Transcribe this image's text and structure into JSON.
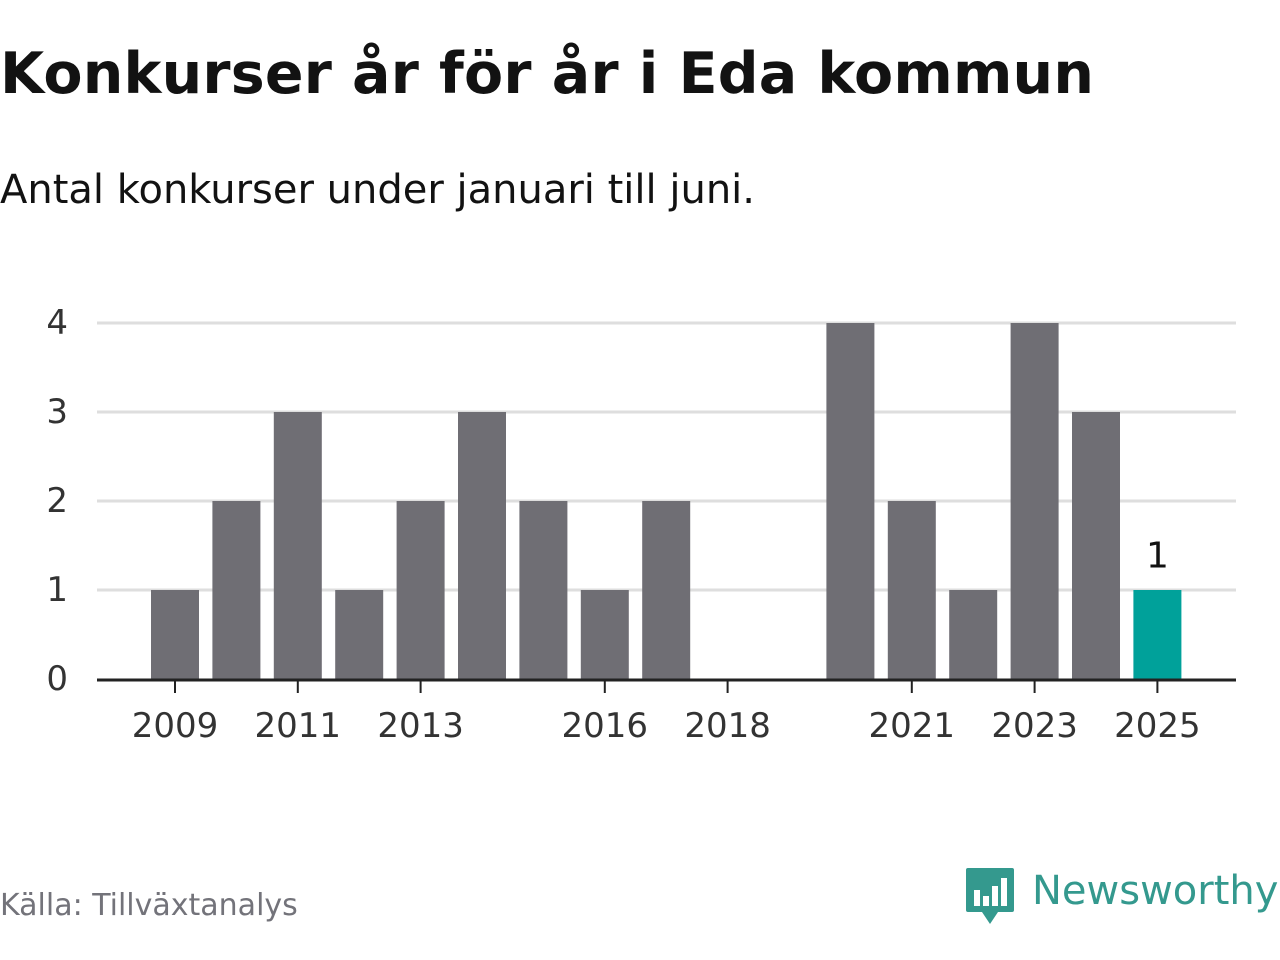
{
  "title": "Konkurser år för år i Eda kommun",
  "subtitle": "Antal konkurser under januari till juni.",
  "source": "Källa: Tillväxtanalys",
  "brand": {
    "name": "Newsworthy",
    "icon": "newsworthy-logo-icon",
    "color": "#34998e"
  },
  "chart_data": {
    "type": "bar",
    "x": [
      2009,
      2010,
      2011,
      2012,
      2013,
      2014,
      2015,
      2016,
      2017,
      2018,
      2019,
      2020,
      2021,
      2022,
      2023,
      2024,
      2025
    ],
    "values": [
      1,
      2,
      3,
      1,
      2,
      3,
      2,
      1,
      2,
      0,
      0,
      4,
      2,
      1,
      4,
      3,
      1
    ],
    "x_tick_labels": [
      "2009",
      "2011",
      "2013",
      "2016",
      "2018",
      "2021",
      "2023",
      "2025"
    ],
    "y_ticks": [
      0,
      1,
      2,
      3,
      4
    ],
    "ylim": [
      0,
      4
    ],
    "grid": true,
    "colors": {
      "bar": "#6f6e74",
      "highlight": "#00a19a",
      "grid": "#dedede",
      "axis": "#222222"
    },
    "highlight": {
      "x": 2025,
      "label": "1"
    }
  }
}
